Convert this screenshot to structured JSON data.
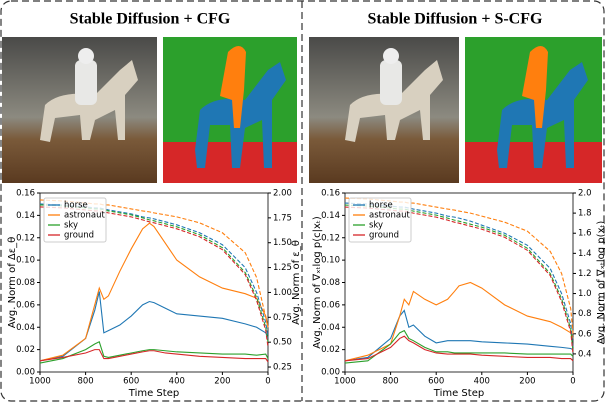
{
  "chart_data": [
    {
      "type": "line",
      "title": "Stable Diffusion + CFG",
      "xlabel": "Time Step",
      "ylabel": "Avg. Norm of Δε_θ",
      "y2label": "Avg. Norm of ε_θ",
      "x": [
        1000,
        900,
        800,
        760,
        740,
        720,
        700,
        650,
        600,
        550,
        520,
        500,
        450,
        400,
        300,
        200,
        100,
        50,
        10,
        0
      ],
      "xlim": [
        1000,
        0
      ],
      "xticks": [
        1000,
        800,
        600,
        400,
        200,
        0
      ],
      "ylim": [
        0,
        0.16
      ],
      "yticks": [
        {
          "value": 0,
          "label": "0.00"
        },
        {
          "value": 0.02,
          "label": "0.02"
        },
        {
          "value": 0.04,
          "label": "0.04"
        },
        {
          "value": 0.06,
          "label": "0.06"
        },
        {
          "value": 0.08,
          "label": "0.08"
        },
        {
          "value": 0.1,
          "label": "0.10"
        },
        {
          "value": 0.12,
          "label": "0.12"
        },
        {
          "value": 0.14,
          "label": "0.14"
        },
        {
          "value": 0.16,
          "label": "0.16"
        }
      ],
      "y2lim": [
        0.2,
        2.0
      ],
      "y2ticks": [
        0.25,
        {
          "value": 0.5,
          "label": "0.50"
        },
        0.75,
        {
          "value": 1,
          "label": "1.00"
        },
        1.25,
        {
          "value": 1.5,
          "label": "1.50"
        },
        1.75,
        {
          "value": 2,
          "label": "2.00"
        }
      ],
      "legend": "upper left",
      "series": [
        {
          "name": "horse",
          "color": "#1f77b4",
          "values": [
            0.01,
            0.014,
            0.03,
            0.055,
            0.072,
            0.035,
            0.037,
            0.042,
            0.05,
            0.06,
            0.063,
            0.062,
            0.057,
            0.052,
            0.05,
            0.048,
            0.043,
            0.04,
            0.035,
            0.03
          ]
        },
        {
          "name": "astronaut",
          "color": "#ff7f0e",
          "values": [
            0.01,
            0.015,
            0.03,
            0.06,
            0.075,
            0.065,
            0.068,
            0.09,
            0.11,
            0.128,
            0.133,
            0.13,
            0.115,
            0.1,
            0.085,
            0.075,
            0.07,
            0.066,
            0.05,
            0.04
          ]
        },
        {
          "name": "sky",
          "color": "#2ca02c",
          "values": [
            0.008,
            0.012,
            0.02,
            0.025,
            0.027,
            0.014,
            0.013,
            0.015,
            0.017,
            0.019,
            0.02,
            0.02,
            0.019,
            0.018,
            0.017,
            0.016,
            0.016,
            0.015,
            0.016,
            0.012
          ]
        },
        {
          "name": "ground",
          "color": "#d62728",
          "values": [
            0.01,
            0.013,
            0.017,
            0.02,
            0.02,
            0.012,
            0.012,
            0.014,
            0.016,
            0.018,
            0.019,
            0.019,
            0.017,
            0.016,
            0.014,
            0.013,
            0.012,
            0.012,
            0.012,
            0.009
          ]
        },
        {
          "color": "#1f77b4",
          "dash": true,
          "axis": "y2",
          "values": [
            1.89,
            1.88,
            1.86,
            1.85,
            1.85,
            1.84,
            1.83,
            1.81,
            1.79,
            1.76,
            1.75,
            1.74,
            1.71,
            1.68,
            1.6,
            1.48,
            1.25,
            1.0,
            0.7,
            0.55
          ]
        },
        {
          "color": "#ff7f0e",
          "dash": true,
          "axis": "y2",
          "values": [
            1.93,
            1.92,
            1.9,
            1.89,
            1.89,
            1.88,
            1.88,
            1.86,
            1.84,
            1.82,
            1.81,
            1.8,
            1.78,
            1.76,
            1.7,
            1.6,
            1.4,
            1.15,
            0.75,
            0.65
          ]
        },
        {
          "color": "#2ca02c",
          "dash": true,
          "axis": "y2",
          "values": [
            1.88,
            1.87,
            1.85,
            1.84,
            1.84,
            1.83,
            1.82,
            1.8,
            1.78,
            1.75,
            1.73,
            1.72,
            1.69,
            1.66,
            1.58,
            1.45,
            1.2,
            0.95,
            0.65,
            0.5
          ]
        },
        {
          "color": "#d62728",
          "dash": true,
          "axis": "y2",
          "values": [
            1.86,
            1.85,
            1.83,
            1.82,
            1.82,
            1.81,
            1.8,
            1.78,
            1.76,
            1.73,
            1.71,
            1.7,
            1.67,
            1.64,
            1.56,
            1.43,
            1.18,
            0.92,
            0.62,
            0.45
          ]
        }
      ]
    },
    {
      "type": "line",
      "title": "Stable Diffusion + S-CFG",
      "xlabel": "Time Step",
      "ylabel": "Avg. Norm of ∇ₓₜlog p(c|xₜ)",
      "y2label": "Avg. Norm of ∇ₓₜlog p(xₜ)",
      "x": [
        1000,
        900,
        800,
        760,
        740,
        720,
        700,
        650,
        600,
        550,
        520,
        500,
        450,
        400,
        300,
        200,
        100,
        50,
        10,
        0
      ],
      "xlim": [
        1000,
        0
      ],
      "xticks": [
        1000,
        800,
        600,
        400,
        200,
        0
      ],
      "ylim": [
        0,
        0.16
      ],
      "yticks": [
        {
          "value": 0,
          "label": "0.00"
        },
        {
          "value": 0.02,
          "label": "0.02"
        },
        {
          "value": 0.04,
          "label": "0.04"
        },
        {
          "value": 0.06,
          "label": "0.06"
        },
        {
          "value": 0.08,
          "label": "0.08"
        },
        {
          "value": 0.1,
          "label": "0.10"
        },
        {
          "value": 0.12,
          "label": "0.12"
        },
        {
          "value": 0.14,
          "label": "0.14"
        },
        {
          "value": 0.16,
          "label": "0.16"
        }
      ],
      "y2lim": [
        0.22,
        2.0
      ],
      "y2ticks": [
        0.4,
        0.6,
        0.8,
        {
          "value": 1,
          "label": "1.0"
        },
        1.2,
        1.4,
        1.6,
        1.8,
        {
          "value": 2,
          "label": "2.0"
        }
      ],
      "legend": "upper left",
      "series": [
        {
          "name": "horse",
          "color": "#1f77b4",
          "values": [
            0.01,
            0.013,
            0.03,
            0.05,
            0.055,
            0.04,
            0.042,
            0.032,
            0.026,
            0.028,
            0.028,
            0.028,
            0.028,
            0.027,
            0.026,
            0.025,
            0.023,
            0.022,
            0.021,
            0.02
          ]
        },
        {
          "name": "astronaut",
          "color": "#ff7f0e",
          "values": [
            0.01,
            0.015,
            0.025,
            0.05,
            0.065,
            0.06,
            0.072,
            0.065,
            0.06,
            0.065,
            0.072,
            0.077,
            0.08,
            0.075,
            0.06,
            0.05,
            0.045,
            0.04,
            0.035,
            0.03
          ]
        },
        {
          "name": "sky",
          "color": "#2ca02c",
          "values": [
            0.008,
            0.01,
            0.025,
            0.035,
            0.037,
            0.03,
            0.028,
            0.022,
            0.018,
            0.018,
            0.017,
            0.017,
            0.017,
            0.017,
            0.017,
            0.016,
            0.016,
            0.016,
            0.016,
            0.014
          ]
        },
        {
          "name": "ground",
          "color": "#d62728",
          "values": [
            0.01,
            0.012,
            0.022,
            0.03,
            0.032,
            0.028,
            0.026,
            0.02,
            0.017,
            0.016,
            0.016,
            0.016,
            0.016,
            0.015,
            0.014,
            0.013,
            0.013,
            0.012,
            0.012,
            0.01
          ]
        },
        {
          "color": "#1f77b4",
          "dash": true,
          "axis": "y2",
          "values": [
            1.9,
            1.89,
            1.87,
            1.86,
            1.86,
            1.85,
            1.84,
            1.82,
            1.8,
            1.77,
            1.76,
            1.75,
            1.72,
            1.68,
            1.6,
            1.48,
            1.25,
            1.0,
            0.7,
            0.45
          ]
        },
        {
          "color": "#ff7f0e",
          "dash": true,
          "axis": "y2",
          "values": [
            1.95,
            1.94,
            1.92,
            1.91,
            1.91,
            1.9,
            1.9,
            1.88,
            1.86,
            1.84,
            1.83,
            1.82,
            1.8,
            1.77,
            1.71,
            1.62,
            1.42,
            1.2,
            0.85,
            0.6
          ]
        },
        {
          "color": "#2ca02c",
          "dash": true,
          "axis": "y2",
          "values": [
            1.88,
            1.87,
            1.85,
            1.84,
            1.84,
            1.83,
            1.82,
            1.8,
            1.78,
            1.75,
            1.73,
            1.72,
            1.69,
            1.66,
            1.58,
            1.45,
            1.2,
            0.95,
            0.65,
            0.42
          ]
        },
        {
          "color": "#d62728",
          "dash": true,
          "axis": "y2",
          "values": [
            1.86,
            1.85,
            1.83,
            1.82,
            1.82,
            1.81,
            1.8,
            1.78,
            1.76,
            1.73,
            1.71,
            1.7,
            1.67,
            1.64,
            1.56,
            1.43,
            1.18,
            0.92,
            0.62,
            0.4
          ]
        }
      ]
    }
  ]
}
